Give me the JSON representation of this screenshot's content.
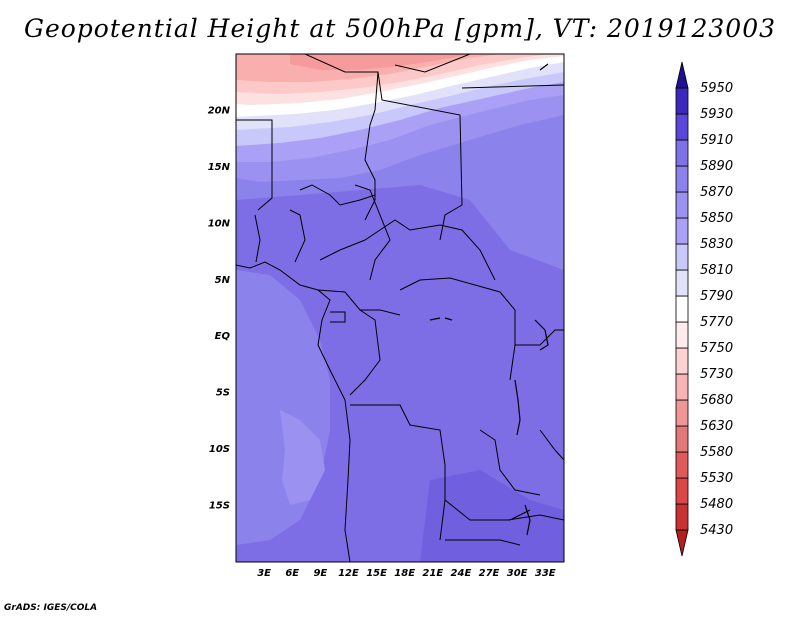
{
  "title": "Geopotential Height at 500hPa [gpm], VT: 2019123003",
  "credit": "GrADS: IGES/COLA",
  "map": {
    "lon_range": [
      0,
      35
    ],
    "lat_range": [
      -20,
      25
    ],
    "lon_ticks": [
      {
        "lon": 3,
        "label": "3E"
      },
      {
        "lon": 6,
        "label": "6E"
      },
      {
        "lon": 9,
        "label": "9E"
      },
      {
        "lon": 12,
        "label": "12E"
      },
      {
        "lon": 15,
        "label": "15E"
      },
      {
        "lon": 18,
        "label": "18E"
      },
      {
        "lon": 21,
        "label": "21E"
      },
      {
        "lon": 24,
        "label": "24E"
      },
      {
        "lon": 27,
        "label": "27E"
      },
      {
        "lon": 30,
        "label": "30E"
      },
      {
        "lon": 33,
        "label": "33E"
      }
    ],
    "lat_ticks": [
      {
        "lat": 20,
        "label": "20N"
      },
      {
        "lat": 15,
        "label": "15N"
      },
      {
        "lat": 10,
        "label": "10N"
      },
      {
        "lat": 5,
        "label": "5N"
      },
      {
        "lat": 0,
        "label": "EQ"
      },
      {
        "lat": -5,
        "label": "5S"
      },
      {
        "lat": -10,
        "label": "10S"
      },
      {
        "lat": -15,
        "label": "15S"
      }
    ]
  },
  "colorbar": {
    "levels": [
      "5430",
      "5480",
      "5530",
      "5580",
      "5630",
      "5680",
      "5730",
      "5750",
      "5770",
      "5790",
      "5810",
      "5830",
      "5850",
      "5870",
      "5890",
      "5910",
      "5930",
      "5950"
    ],
    "colors": [
      "#b41e1e",
      "#c83232",
      "#dc4646",
      "#e05a5a",
      "#e47878",
      "#f09696",
      "#f8b4b4",
      "#fcd2d2",
      "#ffebeb",
      "#ffffff",
      "#e1e1fa",
      "#c8c8fa",
      "#aaa0f5",
      "#9b91f0",
      "#8c82eb",
      "#7d72e6",
      "#5a46dc",
      "#3c28be",
      "#1e0f96"
    ]
  },
  "field_colors": {
    "red_1": "#f59b9b",
    "red_2": "#faafaf",
    "red_3": "#fcc8c8",
    "red_4": "#fde1e1",
    "white": "#ffffff",
    "blue_1": "#e1e1fa",
    "blue_2": "#c8c8fa",
    "blue_3": "#aaa0f5",
    "blue_4": "#9b91f0",
    "blue_5": "#8c82eb",
    "blue_6": "#7d6ee6"
  }
}
